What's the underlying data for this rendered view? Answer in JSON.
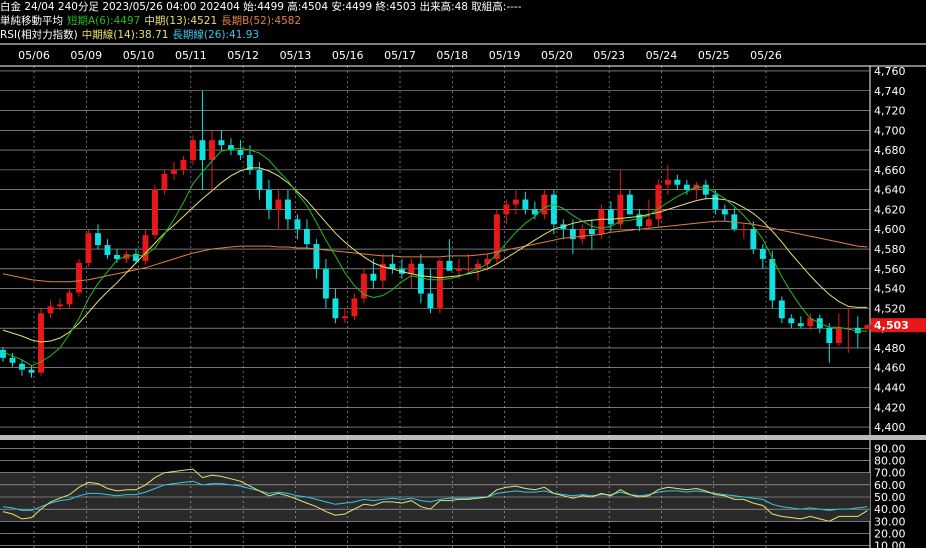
{
  "header": {
    "line1": "白金 24/04 240分足 2023/05/26 04:00 202404 始:4499 高:4504 安:4499 終:4503 出来高:48 取組高:----",
    "ma_title": "単純移動平均",
    "ma_short": "短期A(6):4497",
    "ma_mid": "中期(13):4521",
    "ma_long": "長期B(52):4582",
    "rsi_title": "RSI(相対力指数)",
    "rsi_mid": "中期線(14):38.71",
    "rsi_long": "長期線(26):41.93"
  },
  "colors": {
    "background": "#000000",
    "up_candle": "#e81818",
    "down_candle": "#10e0e0",
    "ma_short": "#22bb22",
    "ma_mid": "#e8e070",
    "ma_long": "#e08040",
    "rsi_mid": "#e8e070",
    "rsi_long": "#30c8e8",
    "last_price_bg": "#e81818"
  },
  "chart_data": [
    {
      "type": "candlestick",
      "title": "白金 24/04 240分足",
      "x_labels": [
        "05/06",
        "05/09",
        "05/10",
        "05/11",
        "05/12",
        "05/13",
        "05/16",
        "05/17",
        "05/18",
        "05/19",
        "05/20",
        "05/23",
        "05/24",
        "05/25",
        "05/26"
      ],
      "y_ticks": [
        4400,
        4420,
        4440,
        4460,
        4480,
        4500,
        4520,
        4540,
        4560,
        4580,
        4600,
        4620,
        4640,
        4660,
        4680,
        4700,
        4720,
        4740,
        4760
      ],
      "ylim": [
        4393,
        4763
      ],
      "last_price_label": "4,503",
      "candles": [
        [
          4478,
          4481,
          4466,
          4470
        ],
        [
          4470,
          4475,
          4461,
          4465
        ],
        [
          4464,
          4468,
          4452,
          4458
        ],
        [
          4458,
          4462,
          4450,
          4455
        ],
        [
          4455,
          4520,
          4452,
          4515
        ],
        [
          4515,
          4528,
          4510,
          4522
        ],
        [
          4522,
          4530,
          4518,
          4524
        ],
        [
          4524,
          4540,
          4520,
          4536
        ],
        [
          4536,
          4570,
          4532,
          4566
        ],
        [
          4566,
          4600,
          4562,
          4596
        ],
        [
          4596,
          4605,
          4580,
          4584
        ],
        [
          4584,
          4590,
          4570,
          4574
        ],
        [
          4574,
          4580,
          4566,
          4570
        ],
        [
          4570,
          4578,
          4566,
          4575
        ],
        [
          4575,
          4580,
          4565,
          4568
        ],
        [
          4568,
          4600,
          4564,
          4594
        ],
        [
          4594,
          4645,
          4590,
          4640
        ],
        [
          4640,
          4660,
          4635,
          4656
        ],
        [
          4656,
          4668,
          4650,
          4660
        ],
        [
          4660,
          4674,
          4655,
          4670
        ],
        [
          4670,
          4695,
          4665,
          4690
        ],
        [
          4690,
          4740,
          4640,
          4670
        ],
        [
          4670,
          4700,
          4640,
          4690
        ],
        [
          4690,
          4700,
          4680,
          4685
        ],
        [
          4685,
          4692,
          4675,
          4680
        ],
        [
          4680,
          4690,
          4670,
          4675
        ],
        [
          4675,
          4685,
          4655,
          4660
        ],
        [
          4660,
          4668,
          4630,
          4640
        ],
        [
          4640,
          4650,
          4610,
          4620
        ],
        [
          4620,
          4640,
          4600,
          4630
        ],
        [
          4630,
          4640,
          4600,
          4610
        ],
        [
          4610,
          4615,
          4590,
          4600
        ],
        [
          4600,
          4610,
          4580,
          4585
        ],
        [
          4585,
          4590,
          4550,
          4560
        ],
        [
          4560,
          4570,
          4520,
          4530
        ],
        [
          4530,
          4540,
          4505,
          4510
        ],
        [
          4510,
          4520,
          4505,
          4512
        ],
        [
          4512,
          4535,
          4508,
          4530
        ],
        [
          4530,
          4560,
          4525,
          4555
        ],
        [
          4555,
          4570,
          4540,
          4548
        ],
        [
          4548,
          4575,
          4540,
          4565
        ],
        [
          4565,
          4575,
          4555,
          4560
        ],
        [
          4560,
          4570,
          4550,
          4555
        ],
        [
          4555,
          4570,
          4540,
          4565
        ],
        [
          4565,
          4575,
          4525,
          4535
        ],
        [
          4535,
          4560,
          4515,
          4520
        ],
        [
          4520,
          4570,
          4515,
          4568
        ],
        [
          4568,
          4590,
          4560,
          4558
        ],
        [
          4558,
          4570,
          4550,
          4560
        ],
        [
          4560,
          4575,
          4555,
          4560
        ],
        [
          4560,
          4570,
          4548,
          4565
        ],
        [
          4565,
          4575,
          4558,
          4570
        ],
        [
          4570,
          4620,
          4565,
          4615
        ],
        [
          4615,
          4630,
          4605,
          4625
        ],
        [
          4625,
          4640,
          4615,
          4630
        ],
        [
          4630,
          4638,
          4615,
          4620
        ],
        [
          4620,
          4628,
          4610,
          4615
        ],
        [
          4615,
          4640,
          4610,
          4635
        ],
        [
          4635,
          4640,
          4595,
          4605
        ],
        [
          4605,
          4610,
          4590,
          4600
        ],
        [
          4600,
          4610,
          4575,
          4590
        ],
        [
          4590,
          4605,
          4585,
          4600
        ],
        [
          4600,
          4610,
          4580,
          4595
        ],
        [
          4595,
          4625,
          4590,
          4620
        ],
        [
          4620,
          4628,
          4598,
          4605
        ],
        [
          4605,
          4660,
          4600,
          4635
        ],
        [
          4635,
          4640,
          4615,
          4615
        ],
        [
          4615,
          4620,
          4598,
          4603
        ],
        [
          4603,
          4630,
          4600,
          4610
        ],
        [
          4610,
          4650,
          4602,
          4645
        ],
        [
          4645,
          4665,
          4635,
          4650
        ],
        [
          4650,
          4655,
          4640,
          4645
        ],
        [
          4645,
          4650,
          4635,
          4640
        ],
        [
          4640,
          4648,
          4630,
          4645
        ],
        [
          4645,
          4650,
          4630,
          4635
        ],
        [
          4635,
          4640,
          4615,
          4620
        ],
        [
          4620,
          4625,
          4608,
          4615
        ],
        [
          4615,
          4622,
          4598,
          4600
        ],
        [
          4600,
          4605,
          4590,
          4600
        ],
        [
          4600,
          4608,
          4575,
          4580
        ],
        [
          4580,
          4585,
          4560,
          4570
        ],
        [
          4570,
          4578,
          4520,
          4528
        ],
        [
          4528,
          4532,
          4505,
          4510
        ],
        [
          4510,
          4514,
          4500,
          4505
        ],
        [
          4505,
          4512,
          4500,
          4502
        ],
        [
          4502,
          4515,
          4498,
          4510
        ],
        [
          4510,
          4514,
          4495,
          4500
        ],
        [
          4500,
          4505,
          4465,
          4485
        ],
        [
          4485,
          4515,
          4482,
          4500
        ],
        [
          4500,
          4520,
          4475,
          4500
        ],
        [
          4500,
          4512,
          4480,
          4495
        ],
        [
          4499,
          4504,
          4499,
          4503
        ]
      ],
      "ma_short": [
        4476,
        4472,
        4468,
        4462,
        4466,
        4472,
        4480,
        4494,
        4510,
        4530,
        4545,
        4557,
        4569,
        4573,
        4573,
        4574,
        4581,
        4595,
        4610,
        4627,
        4646,
        4658,
        4669,
        4679,
        4681,
        4682,
        4680,
        4677,
        4670,
        4659,
        4649,
        4636,
        4624,
        4607,
        4589,
        4573,
        4556,
        4543,
        4534,
        4531,
        4533,
        4539,
        4547,
        4553,
        4551,
        4549,
        4549,
        4550,
        4552,
        4556,
        4560,
        4565,
        4575,
        4586,
        4597,
        4606,
        4613,
        4622,
        4625,
        4621,
        4614,
        4608,
        4603,
        4601,
        4603,
        4608,
        4609,
        4611,
        4614,
        4621,
        4627,
        4633,
        4638,
        4643,
        4642,
        4637,
        4631,
        4623,
        4614,
        4603,
        4590,
        4571,
        4552,
        4536,
        4522,
        4510,
        4505,
        4501,
        4501,
        4499,
        4497,
        4497
      ],
      "ma_mid": [
        4498,
        4495,
        4492,
        4488,
        4486,
        4487,
        4490,
        4496,
        4505,
        4516,
        4527,
        4537,
        4546,
        4556,
        4566,
        4576,
        4586,
        4596,
        4604,
        4613,
        4622,
        4631,
        4639,
        4647,
        4654,
        4659,
        4662,
        4662,
        4659,
        4654,
        4647,
        4638,
        4629,
        4618,
        4607,
        4596,
        4587,
        4579,
        4572,
        4566,
        4562,
        4560,
        4557,
        4555,
        4553,
        4552,
        4551,
        4552,
        4553,
        4555,
        4557,
        4560,
        4565,
        4571,
        4577,
        4583,
        4589,
        4595,
        4600,
        4603,
        4606,
        4608,
        4609,
        4610,
        4610,
        4611,
        4612,
        4613,
        4615,
        4617,
        4620,
        4623,
        4626,
        4629,
        4631,
        4631,
        4630,
        4627,
        4622,
        4616,
        4608,
        4598,
        4587,
        4575,
        4564,
        4553,
        4543,
        4534,
        4527,
        4522,
        4521,
        4521
      ],
      "ma_long": [
        4555,
        4553,
        4551,
        4549,
        4548,
        4547,
        4547,
        4547,
        4548,
        4549,
        4551,
        4553,
        4555,
        4557,
        4559,
        4561,
        4564,
        4567,
        4570,
        4573,
        4576,
        4578,
        4580,
        4581,
        4582,
        4583,
        4583,
        4583,
        4583,
        4582,
        4582,
        4581,
        4581,
        4580,
        4579,
        4578,
        4577,
        4576,
        4575,
        4574,
        4573,
        4573,
        4572,
        4572,
        4572,
        4572,
        4572,
        4573,
        4573,
        4573,
        4574,
        4575,
        4577,
        4579,
        4581,
        4583,
        4585,
        4587,
        4589,
        4591,
        4592,
        4593,
        4594,
        4595,
        4597,
        4598,
        4599,
        4600,
        4601,
        4602,
        4603,
        4604,
        4605,
        4606,
        4607,
        4608,
        4608,
        4607,
        4606,
        4605,
        4603,
        4601,
        4599,
        4597,
        4595,
        4593,
        4591,
        4589,
        4587,
        4585,
        4583,
        4582
      ]
    },
    {
      "type": "line",
      "title": "RSI(相対力指数)",
      "y_ticks": [
        10,
        20,
        30,
        40,
        50,
        60,
        70,
        80,
        90
      ],
      "y_tick_labels": [
        "10.00",
        "20.00",
        "30.00",
        "40.00",
        "50.00",
        "60.00",
        "70.00",
        "80.00",
        "90.00"
      ],
      "ylim": [
        8,
        92
      ],
      "series": [
        {
          "name": "中期線(14)",
          "values": [
            38,
            36,
            32,
            33,
            40,
            46,
            49,
            52,
            58,
            62,
            61,
            57,
            55,
            56,
            56,
            60,
            66,
            70,
            71,
            72,
            73,
            66,
            68,
            67,
            65,
            63,
            59,
            55,
            51,
            53,
            51,
            48,
            45,
            42,
            38,
            35,
            36,
            40,
            44,
            43,
            46,
            46,
            45,
            47,
            42,
            40,
            47,
            47,
            48,
            48,
            49,
            50,
            56,
            58,
            59,
            57,
            56,
            58,
            53,
            51,
            49,
            51,
            50,
            53,
            51,
            56,
            52,
            50,
            51,
            56,
            58,
            57,
            56,
            57,
            55,
            52,
            51,
            48,
            48,
            45,
            43,
            36,
            34,
            33,
            32,
            34,
            32,
            30,
            34,
            34,
            34,
            38.71
          ]
        },
        {
          "name": "長期線(26)",
          "values": [
            42,
            41,
            39,
            39,
            42,
            45,
            47,
            48,
            51,
            53,
            53,
            52,
            51,
            52,
            52,
            54,
            57,
            60,
            61,
            62,
            63,
            60,
            61,
            61,
            60,
            59,
            57,
            55,
            53,
            54,
            53,
            51,
            50,
            48,
            46,
            44,
            45,
            46,
            48,
            47,
            48,
            49,
            48,
            49,
            47,
            46,
            48,
            49,
            49,
            49,
            50,
            50,
            53,
            54,
            55,
            54,
            54,
            55,
            53,
            52,
            51,
            52,
            51,
            52,
            52,
            54,
            52,
            51,
            52,
            54,
            55,
            55,
            54,
            55,
            54,
            53,
            52,
            51,
            50,
            49,
            48,
            44,
            42,
            41,
            40,
            41,
            40,
            39,
            40,
            40,
            41,
            41.93
          ]
        }
      ]
    }
  ]
}
